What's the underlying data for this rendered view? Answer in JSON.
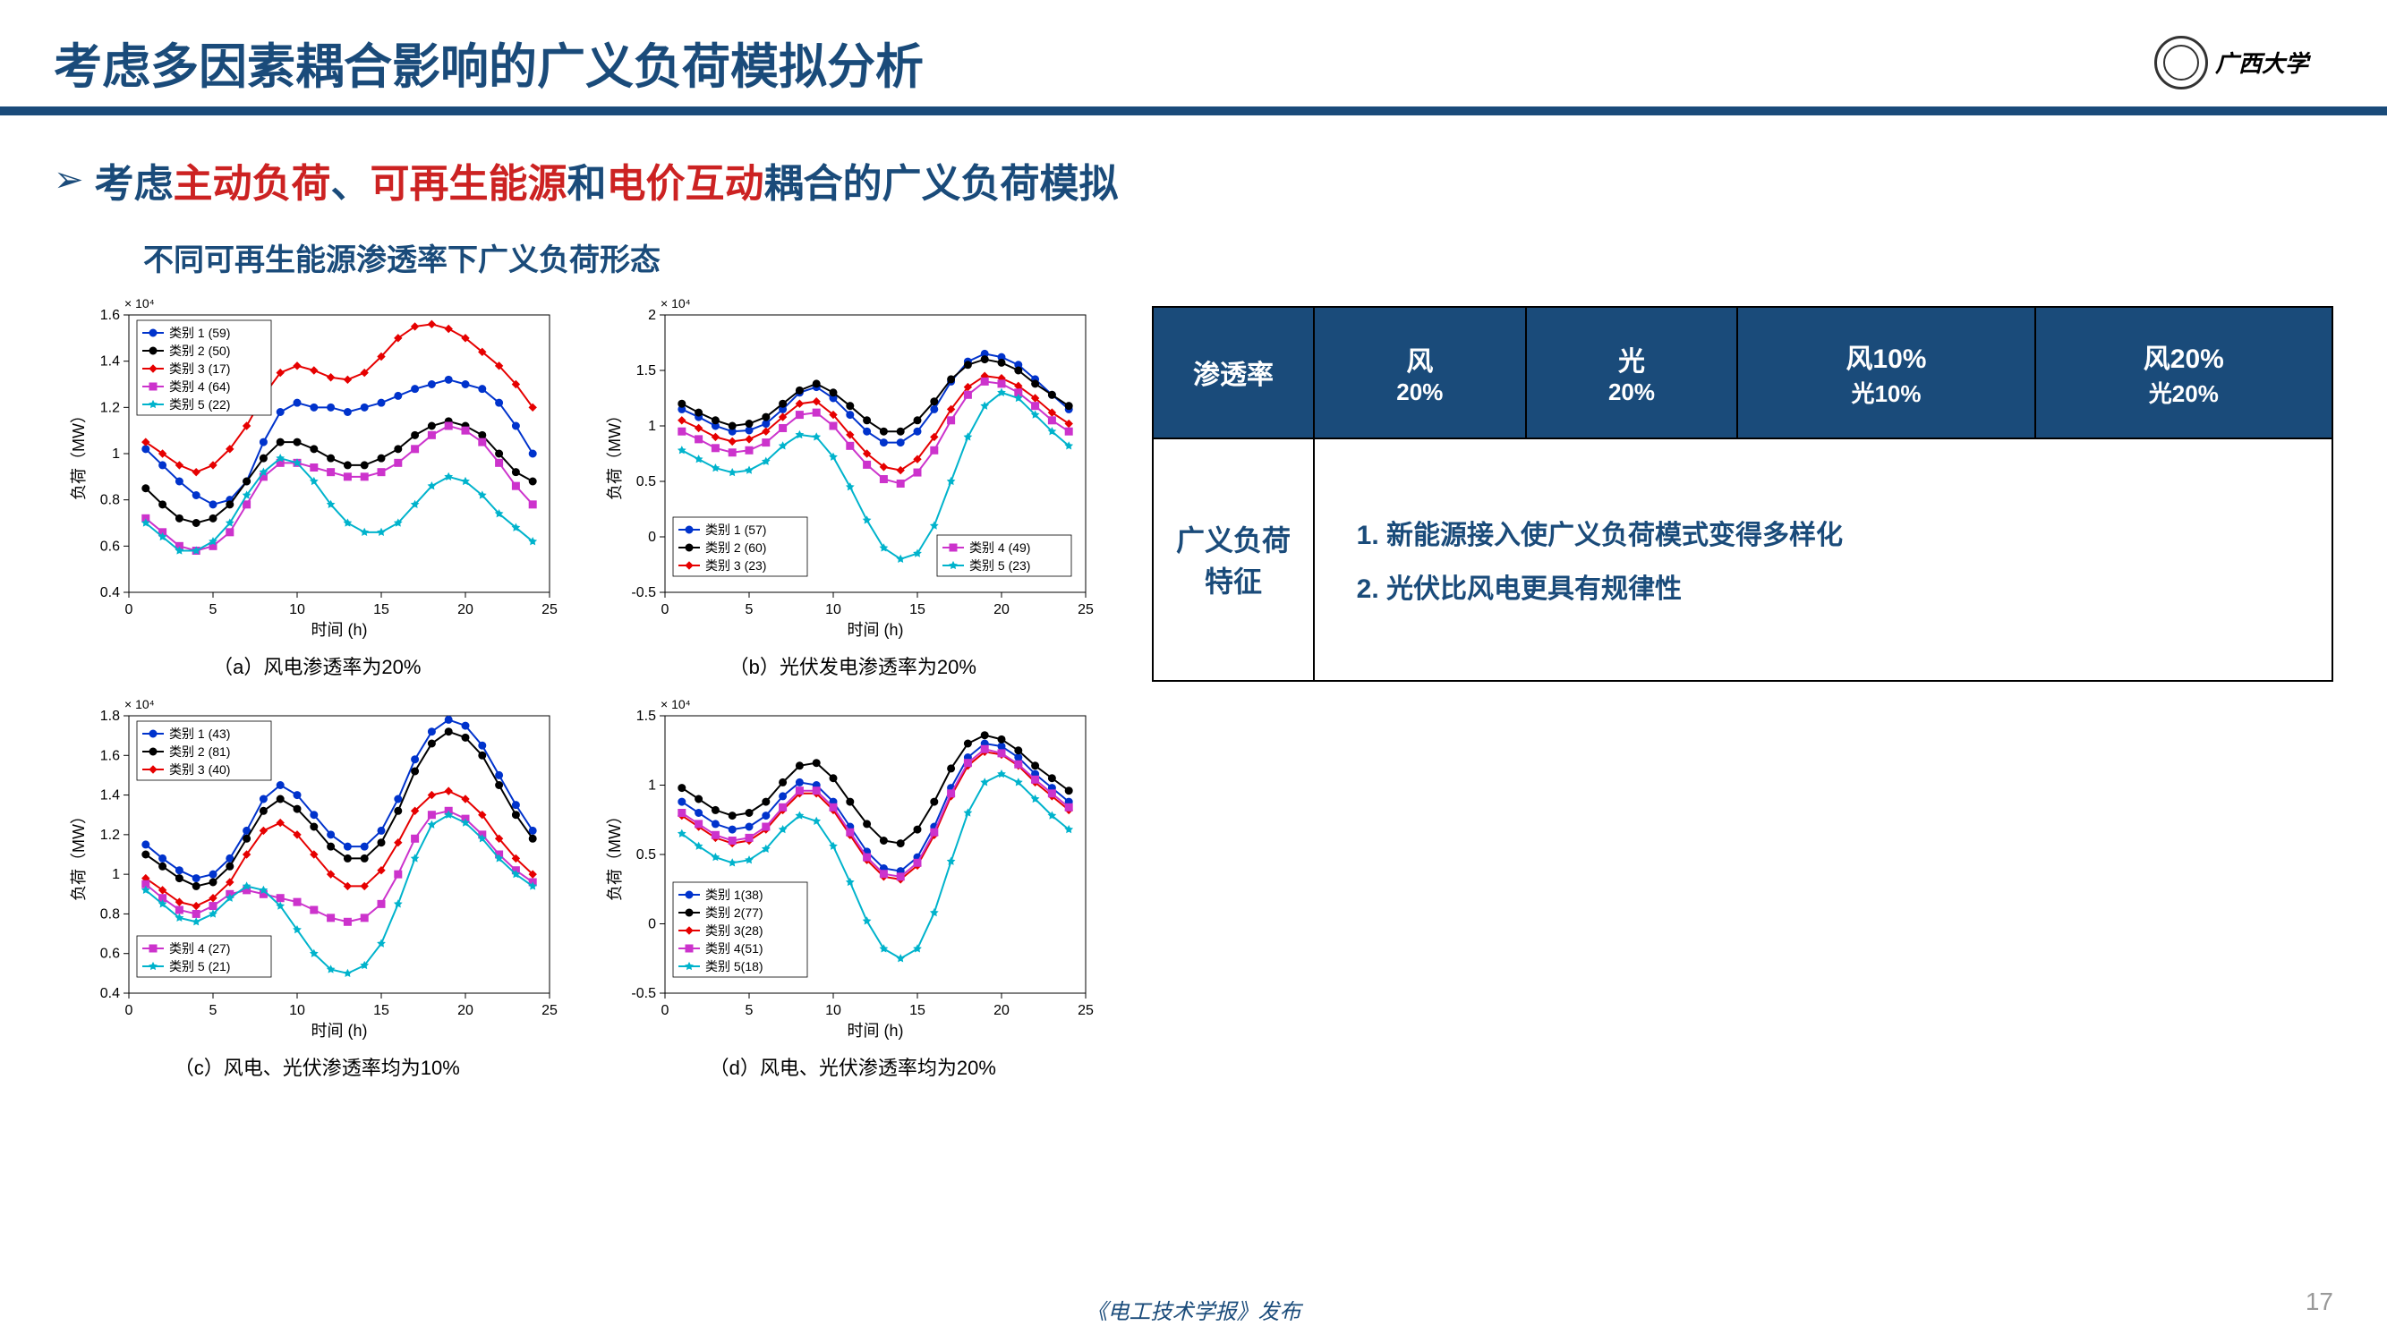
{
  "header": {
    "title": "考虑多因素耦合影响的广义负荷模拟分析",
    "logo_text": "广西大学"
  },
  "subheader": {
    "prefix": "考虑",
    "red1": "主动负荷",
    "sep1": "、",
    "red2": "可再生能源",
    "mid": "和",
    "red3": "电价互动",
    "suffix": "耦合的广义负荷模拟"
  },
  "section_title": "不同可再生能源渗透率下广义负荷形态",
  "chart_common": {
    "xlabel": "时间 (h)",
    "ylabel": "负荷（MW）",
    "exponent": "× 10⁴",
    "xlim": [
      0,
      25
    ],
    "xticks": [
      0,
      5,
      10,
      15,
      20,
      25
    ],
    "background_color": "#ffffff",
    "grid_color": "#cccccc",
    "marker_size": 4,
    "line_width": 2,
    "legend_box_border": "#000000",
    "axis_color": "#000000",
    "label_fontsize": 18,
    "tick_fontsize": 16,
    "legend_fontsize": 14
  },
  "series_colors": {
    "1": "#0033cc",
    "2": "#000000",
    "3": "#e60000",
    "4": "#cc33cc",
    "5": "#00b3cc"
  },
  "series_markers": {
    "1": "circle",
    "2": "circle",
    "3": "diamond",
    "4": "square",
    "5": "star"
  },
  "charts": [
    {
      "id": "a",
      "caption": "（a）风电渗透率为20%",
      "ylim": [
        0.4,
        1.6
      ],
      "yticks": [
        0.4,
        0.6,
        0.8,
        1.0,
        1.2,
        1.4,
        1.6
      ],
      "legend_pos": "top-left",
      "series": [
        {
          "name": "类别 1 (59)",
          "color_key": "1",
          "marker": "circle",
          "y": [
            1.02,
            0.95,
            0.88,
            0.82,
            0.78,
            0.8,
            0.88,
            1.05,
            1.18,
            1.22,
            1.2,
            1.2,
            1.18,
            1.2,
            1.22,
            1.25,
            1.28,
            1.3,
            1.32,
            1.3,
            1.28,
            1.22,
            1.12,
            1.0
          ]
        },
        {
          "name": "类别 2 (50)",
          "color_key": "2",
          "marker": "circle",
          "y": [
            0.85,
            0.78,
            0.72,
            0.7,
            0.72,
            0.78,
            0.88,
            0.98,
            1.05,
            1.05,
            1.02,
            0.98,
            0.95,
            0.95,
            0.98,
            1.02,
            1.08,
            1.12,
            1.14,
            1.12,
            1.08,
            1.0,
            0.92,
            0.88
          ]
        },
        {
          "name": "类别 3 (17)",
          "color_key": "3",
          "marker": "diamond",
          "y": [
            1.05,
            1.0,
            0.95,
            0.92,
            0.95,
            1.02,
            1.12,
            1.25,
            1.35,
            1.38,
            1.36,
            1.33,
            1.32,
            1.35,
            1.42,
            1.5,
            1.55,
            1.56,
            1.54,
            1.5,
            1.44,
            1.38,
            1.3,
            1.2
          ]
        },
        {
          "name": "类别 4 (64)",
          "color_key": "4",
          "marker": "square",
          "y": [
            0.72,
            0.66,
            0.6,
            0.58,
            0.6,
            0.66,
            0.78,
            0.9,
            0.96,
            0.96,
            0.94,
            0.92,
            0.9,
            0.9,
            0.92,
            0.96,
            1.02,
            1.08,
            1.12,
            1.1,
            1.05,
            0.96,
            0.86,
            0.78
          ]
        },
        {
          "name": "类别 5 (22)",
          "color_key": "5",
          "marker": "star",
          "y": [
            0.7,
            0.64,
            0.58,
            0.58,
            0.62,
            0.7,
            0.82,
            0.92,
            0.98,
            0.96,
            0.88,
            0.78,
            0.7,
            0.66,
            0.66,
            0.7,
            0.78,
            0.86,
            0.9,
            0.88,
            0.82,
            0.74,
            0.68,
            0.62
          ]
        }
      ]
    },
    {
      "id": "b",
      "caption": "（b）光伏发电渗透率为20%",
      "ylim": [
        -0.5,
        2.0
      ],
      "yticks": [
        -0.5,
        0,
        0.5,
        1.0,
        1.5,
        2.0
      ],
      "legend_pos": "bottom-split",
      "series": [
        {
          "name": "类别 1 (57)",
          "color_key": "1",
          "marker": "circle",
          "y": [
            1.15,
            1.08,
            1.0,
            0.95,
            0.96,
            1.02,
            1.15,
            1.3,
            1.35,
            1.25,
            1.1,
            0.95,
            0.85,
            0.85,
            0.95,
            1.15,
            1.4,
            1.58,
            1.65,
            1.62,
            1.55,
            1.42,
            1.28,
            1.15
          ]
        },
        {
          "name": "类别 2 (60)",
          "color_key": "2",
          "marker": "circle",
          "y": [
            1.2,
            1.12,
            1.05,
            1.0,
            1.02,
            1.08,
            1.2,
            1.32,
            1.38,
            1.3,
            1.18,
            1.05,
            0.95,
            0.95,
            1.05,
            1.22,
            1.42,
            1.55,
            1.6,
            1.57,
            1.5,
            1.38,
            1.28,
            1.18
          ]
        },
        {
          "name": "类别 3 (23)",
          "color_key": "3",
          "marker": "diamond",
          "y": [
            1.05,
            0.98,
            0.9,
            0.86,
            0.88,
            0.95,
            1.08,
            1.2,
            1.22,
            1.1,
            0.92,
            0.75,
            0.63,
            0.6,
            0.7,
            0.9,
            1.15,
            1.35,
            1.45,
            1.43,
            1.36,
            1.25,
            1.12,
            1.02
          ]
        },
        {
          "name": "类别 4 (49)",
          "color_key": "4",
          "marker": "square",
          "y": [
            0.95,
            0.88,
            0.8,
            0.76,
            0.78,
            0.85,
            0.98,
            1.1,
            1.12,
            1.0,
            0.82,
            0.65,
            0.52,
            0.48,
            0.58,
            0.78,
            1.05,
            1.28,
            1.4,
            1.38,
            1.3,
            1.18,
            1.05,
            0.95
          ]
        },
        {
          "name": "类别 5 (23)",
          "color_key": "5",
          "marker": "star",
          "y": [
            0.78,
            0.7,
            0.62,
            0.58,
            0.6,
            0.68,
            0.82,
            0.92,
            0.9,
            0.72,
            0.45,
            0.15,
            -0.1,
            -0.2,
            -0.15,
            0.1,
            0.5,
            0.9,
            1.18,
            1.3,
            1.25,
            1.1,
            0.95,
            0.82
          ]
        }
      ]
    },
    {
      "id": "c",
      "caption": "（c）风电、光伏渗透率均为10%",
      "ylim": [
        0.4,
        1.8
      ],
      "yticks": [
        0.4,
        0.6,
        0.8,
        1.0,
        1.2,
        1.4,
        1.6,
        1.8
      ],
      "legend_pos": "left-split",
      "series": [
        {
          "name": "类别 1 (43)",
          "color_key": "1",
          "marker": "circle",
          "y": [
            1.15,
            1.08,
            1.02,
            0.98,
            1.0,
            1.08,
            1.22,
            1.38,
            1.45,
            1.4,
            1.3,
            1.2,
            1.14,
            1.14,
            1.22,
            1.38,
            1.58,
            1.72,
            1.78,
            1.75,
            1.65,
            1.5,
            1.35,
            1.22
          ]
        },
        {
          "name": "类别 2 (81)",
          "color_key": "2",
          "marker": "circle",
          "y": [
            1.1,
            1.04,
            0.98,
            0.94,
            0.96,
            1.04,
            1.18,
            1.32,
            1.38,
            1.33,
            1.24,
            1.14,
            1.08,
            1.08,
            1.16,
            1.32,
            1.52,
            1.66,
            1.72,
            1.69,
            1.6,
            1.45,
            1.3,
            1.18
          ]
        },
        {
          "name": "类别 3 (40)",
          "color_key": "3",
          "marker": "diamond",
          "y": [
            0.98,
            0.92,
            0.86,
            0.84,
            0.88,
            0.96,
            1.1,
            1.22,
            1.26,
            1.2,
            1.1,
            1.0,
            0.94,
            0.94,
            1.02,
            1.16,
            1.32,
            1.4,
            1.42,
            1.38,
            1.3,
            1.18,
            1.08,
            1.0
          ]
        },
        {
          "name": "类别 4 (27)",
          "color_key": "4",
          "marker": "square",
          "y": [
            0.95,
            0.88,
            0.82,
            0.8,
            0.84,
            0.9,
            0.92,
            0.9,
            0.88,
            0.86,
            0.82,
            0.78,
            0.76,
            0.78,
            0.85,
            1.0,
            1.18,
            1.3,
            1.32,
            1.28,
            1.2,
            1.1,
            1.02,
            0.96
          ]
        },
        {
          "name": "类别 5 (21)",
          "color_key": "5",
          "marker": "star",
          "y": [
            0.92,
            0.85,
            0.78,
            0.76,
            0.8,
            0.88,
            0.94,
            0.92,
            0.84,
            0.72,
            0.6,
            0.52,
            0.5,
            0.54,
            0.65,
            0.85,
            1.08,
            1.25,
            1.3,
            1.26,
            1.18,
            1.08,
            1.0,
            0.94
          ]
        }
      ]
    },
    {
      "id": "d",
      "caption": "（d）风电、光伏渗透率均为20%",
      "ylim": [
        -0.5,
        1.5
      ],
      "yticks": [
        -0.5,
        0,
        0.5,
        1.0,
        1.5
      ],
      "legend_pos": "bottom-left",
      "series": [
        {
          "name": "类别 1(38)",
          "color_key": "1",
          "marker": "circle",
          "y": [
            0.88,
            0.8,
            0.72,
            0.68,
            0.7,
            0.78,
            0.92,
            1.02,
            1.0,
            0.88,
            0.7,
            0.52,
            0.4,
            0.38,
            0.48,
            0.7,
            0.98,
            1.2,
            1.3,
            1.28,
            1.2,
            1.08,
            0.98,
            0.88
          ]
        },
        {
          "name": "类别 2(77)",
          "color_key": "2",
          "marker": "circle",
          "y": [
            0.98,
            0.9,
            0.82,
            0.78,
            0.8,
            0.88,
            1.02,
            1.14,
            1.16,
            1.05,
            0.88,
            0.72,
            0.6,
            0.58,
            0.68,
            0.88,
            1.12,
            1.3,
            1.36,
            1.33,
            1.25,
            1.14,
            1.05,
            0.96
          ]
        },
        {
          "name": "类别 3(28)",
          "color_key": "3",
          "marker": "diamond",
          "y": [
            0.78,
            0.7,
            0.62,
            0.58,
            0.6,
            0.68,
            0.82,
            0.94,
            0.94,
            0.82,
            0.64,
            0.46,
            0.34,
            0.32,
            0.42,
            0.64,
            0.92,
            1.14,
            1.24,
            1.22,
            1.14,
            1.02,
            0.92,
            0.82
          ]
        },
        {
          "name": "类别 4(51)",
          "color_key": "4",
          "marker": "square",
          "y": [
            0.8,
            0.72,
            0.64,
            0.6,
            0.62,
            0.7,
            0.84,
            0.96,
            0.96,
            0.84,
            0.66,
            0.48,
            0.36,
            0.34,
            0.44,
            0.66,
            0.94,
            1.16,
            1.26,
            1.23,
            1.15,
            1.04,
            0.94,
            0.84
          ]
        },
        {
          "name": "类别 5(18)",
          "color_key": "5",
          "marker": "star",
          "y": [
            0.65,
            0.56,
            0.48,
            0.44,
            0.46,
            0.54,
            0.68,
            0.78,
            0.74,
            0.56,
            0.3,
            0.02,
            -0.18,
            -0.25,
            -0.18,
            0.08,
            0.45,
            0.8,
            1.02,
            1.08,
            1.02,
            0.9,
            0.78,
            0.68
          ]
        }
      ]
    }
  ],
  "table": {
    "header": [
      {
        "top": "渗透率",
        "sub": ""
      },
      {
        "top": "风",
        "sub": "20%"
      },
      {
        "top": "光",
        "sub": "20%"
      },
      {
        "top": "风10%",
        "sub": "光10%"
      },
      {
        "top": "风20%",
        "sub": "光20%"
      }
    ],
    "row_head": "广义负荷\n特征",
    "features": [
      "新能源接入使广义负荷模式变得多样化",
      "光伏比风电更具有规律性"
    ]
  },
  "footer": "《电工技术学报》发布",
  "page": "17"
}
